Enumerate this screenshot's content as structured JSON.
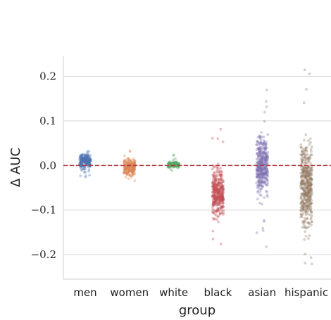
{
  "chart_data": {
    "type": "scatter",
    "subtype": "strip",
    "xlabel": "group",
    "ylabel": "Δ AUC",
    "ylim": [
      -0.255,
      0.245
    ],
    "yticks": [
      0.2,
      0.1,
      0.0,
      -0.1,
      -0.2
    ],
    "ytick_labels": [
      "0.2",
      "0.1",
      "0.0",
      "−0.1",
      "−0.2"
    ],
    "grid": "horizontal",
    "reference_line": {
      "y": 0.0,
      "style": "dashed",
      "color": "#b2323a"
    },
    "categories": [
      "men",
      "women",
      "white",
      "black",
      "asian",
      "hispanic"
    ],
    "series": [
      {
        "category": "men",
        "color": "#4c72b0",
        "n": 220,
        "center": 0.01,
        "spread": 0.012,
        "min": -0.033,
        "max": 0.032
      },
      {
        "category": "women",
        "color": "#dd8452",
        "n": 220,
        "center": -0.005,
        "spread": 0.014,
        "min": -0.04,
        "max": 0.038
      },
      {
        "category": "white",
        "color": "#55a868",
        "n": 180,
        "center": 0.002,
        "spread": 0.004,
        "min": -0.015,
        "max": 0.025
      },
      {
        "category": "black",
        "color": "#c44e52",
        "n": 380,
        "center": -0.06,
        "spread": 0.035,
        "min": -0.19,
        "max": 0.1
      },
      {
        "category": "asian",
        "color": "#8172b3",
        "n": 420,
        "center": 0.0,
        "spread": 0.045,
        "min": -0.2,
        "max": 0.185
      },
      {
        "category": "hispanic",
        "color": "#937860",
        "n": 460,
        "center": -0.045,
        "spread": 0.06,
        "min": -0.23,
        "max": 0.22
      }
    ]
  }
}
